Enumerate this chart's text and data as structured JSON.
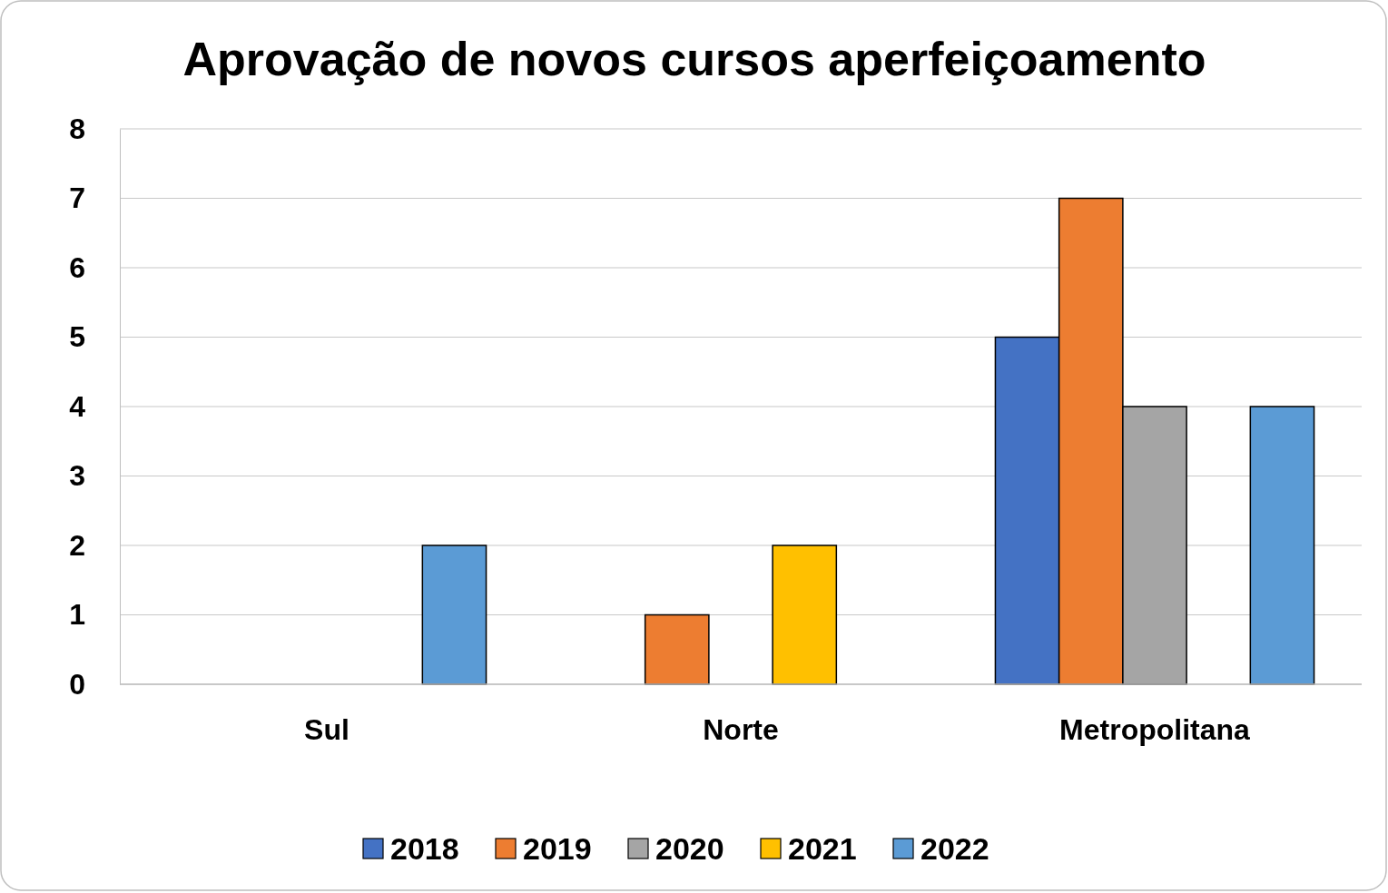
{
  "chart_data": {
    "type": "bar",
    "title": "Aprovação de novos cursos aperfeiçoamento",
    "categories": [
      "Sul",
      "Norte",
      "Metropolitana"
    ],
    "series": [
      {
        "name": "2018",
        "color": "#4472c4",
        "values": [
          0,
          0,
          5
        ]
      },
      {
        "name": "2019",
        "color": "#ed7d31",
        "values": [
          0,
          1,
          7
        ]
      },
      {
        "name": "2020",
        "color": "#a5a5a5",
        "values": [
          0,
          0,
          4
        ]
      },
      {
        "name": "2021",
        "color": "#ffc000",
        "values": [
          0,
          2,
          0
        ]
      },
      {
        "name": "2022",
        "color": "#5b9bd5",
        "values": [
          2,
          0,
          4
        ]
      }
    ],
    "ylim": [
      0,
      8
    ],
    "yticks": [
      0,
      1,
      2,
      3,
      4,
      5,
      6,
      7,
      8
    ],
    "grid": "y",
    "legend": "bottom"
  }
}
